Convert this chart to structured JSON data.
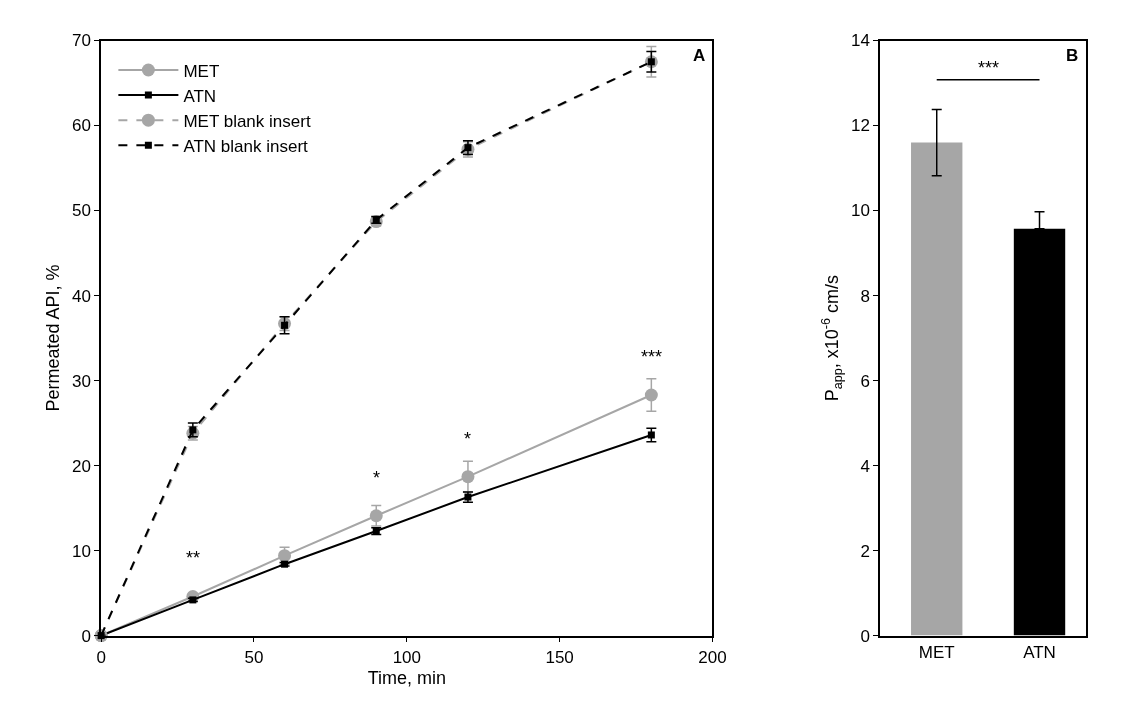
{
  "chart_data": [
    {
      "type": "line",
      "xlabel": "Time, min",
      "ylabel": "Permeated API, %",
      "x": [
        0,
        30,
        60,
        90,
        120,
        180
      ],
      "xlim": [
        0,
        200
      ],
      "xticks": [
        0,
        50,
        100,
        150,
        200
      ],
      "ylim": [
        0,
        70
      ],
      "yticks": [
        0,
        10,
        20,
        30,
        40,
        50,
        60,
        70
      ],
      "legend": "top left",
      "series": [
        {
          "name": "MET",
          "color": "#a6a6a6",
          "values": [
            0,
            4.6,
            9.4,
            14.1,
            18.7,
            28.3
          ],
          "errors": [
            0,
            0.3,
            1.0,
            1.2,
            1.8,
            1.9
          ],
          "marker": "circle",
          "line_style": "solid"
        },
        {
          "name": "ATN",
          "color": "#000000",
          "values": [
            0,
            4.2,
            8.4,
            12.3,
            16.3,
            23.6
          ],
          "errors": [
            0,
            0.2,
            0.2,
            0.4,
            0.6,
            0.8
          ],
          "marker": "square",
          "line_style": "solid"
        },
        {
          "name": "MET blank insert",
          "color": "#a6a6a6",
          "values": [
            0,
            23.8,
            36.7,
            48.7,
            57.2,
            67.5
          ],
          "errors": [
            0,
            0.8,
            0.8,
            0.5,
            0.9,
            1.8
          ],
          "marker": "circle",
          "line_style": "dashed"
        },
        {
          "name": "ATN blank insert",
          "color": "#000000",
          "values": [
            0,
            24.2,
            36.5,
            48.9,
            57.4,
            67.5
          ],
          "errors": [
            0,
            0.8,
            1.0,
            0.4,
            0.8,
            1.2
          ],
          "marker": "square",
          "line_style": "dashed"
        }
      ],
      "annotations": [
        {
          "text": "**",
          "x": 30,
          "y": 4.6
        },
        {
          "text": "*",
          "x": 90,
          "y": 14.1
        },
        {
          "text": "*",
          "x": 120,
          "y": 18.7
        },
        {
          "text": "***",
          "x": 180,
          "y": 28.3
        },
        "A"
      ]
    },
    {
      "type": "bar",
      "ylabel": "P$_{app}$, x10$^{-6}$ cm/s",
      "categories": [
        "MET",
        "ATN"
      ],
      "values": [
        11.6,
        9.57
      ],
      "colors": [
        "#a6a6a6",
        "#000000"
      ],
      "errors": [
        [
          10.82,
          12.38
        ],
        [
          9.57,
          9.97
        ]
      ],
      "ylim": [
        0,
        14
      ],
      "yticks": [
        0,
        2,
        4,
        6,
        8,
        10,
        12,
        14
      ],
      "legend": false,
      "annotations": [
        "***",
        "B"
      ]
    }
  ]
}
